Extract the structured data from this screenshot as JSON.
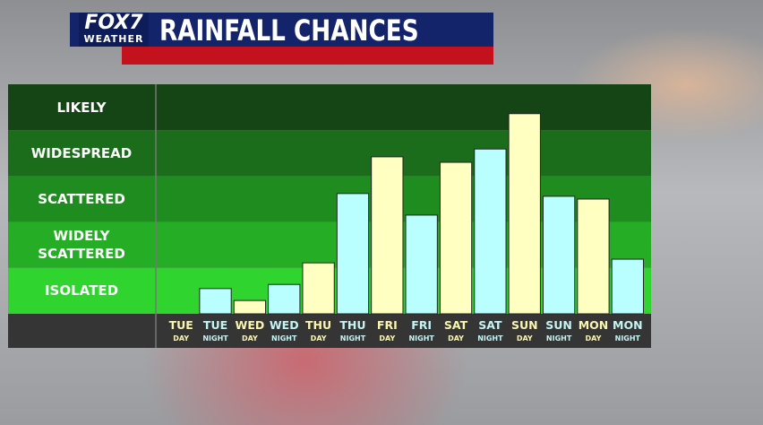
{
  "header": {
    "logo": "FOX7",
    "logo_sub": "WEATHER"
  },
  "chart_data": {
    "type": "bar",
    "title": "RAINFALL CHANCES",
    "categories": [
      "TUE",
      "TUE",
      "WED",
      "WED",
      "THU",
      "THU",
      "FRI",
      "FRI",
      "SAT",
      "SAT",
      "SUN",
      "SUN",
      "MON",
      "MON"
    ],
    "periods": [
      "DAY",
      "NIGHT",
      "DAY",
      "NIGHT",
      "DAY",
      "NIGHT",
      "DAY",
      "NIGHT",
      "DAY",
      "NIGHT",
      "DAY",
      "NIGHT",
      "DAY",
      "NIGHT"
    ],
    "values": [
      0,
      0.55,
      0.29,
      0.64,
      1.11,
      2.62,
      3.42,
      2.15,
      3.3,
      3.59,
      4.36,
      2.56,
      2.5,
      1.19
    ],
    "bar_colors": [
      "#ffffc2",
      "#b9ffff",
      "#ffffc2",
      "#b9ffff",
      "#ffffc2",
      "#b9ffff",
      "#ffffc2",
      "#b9ffff",
      "#ffffc2",
      "#b9ffff",
      "#ffffc2",
      "#b9ffff",
      "#ffffc2",
      "#b9ffff"
    ],
    "ylim": [
      0,
      5
    ],
    "yticks": [
      {
        "value": 0.5,
        "label": "ISOLATED"
      },
      {
        "value": 1.5,
        "label": "WIDELY SCATTERED"
      },
      {
        "value": 2.5,
        "label": "SCATTERED"
      },
      {
        "value": 3.5,
        "label": "WIDESPREAD"
      },
      {
        "value": 4.5,
        "label": "LIKELY"
      }
    ],
    "band_colors": [
      "#2fd42f",
      "#26ad26",
      "#1f8c1f",
      "#1b6c1b",
      "#154515"
    ]
  }
}
